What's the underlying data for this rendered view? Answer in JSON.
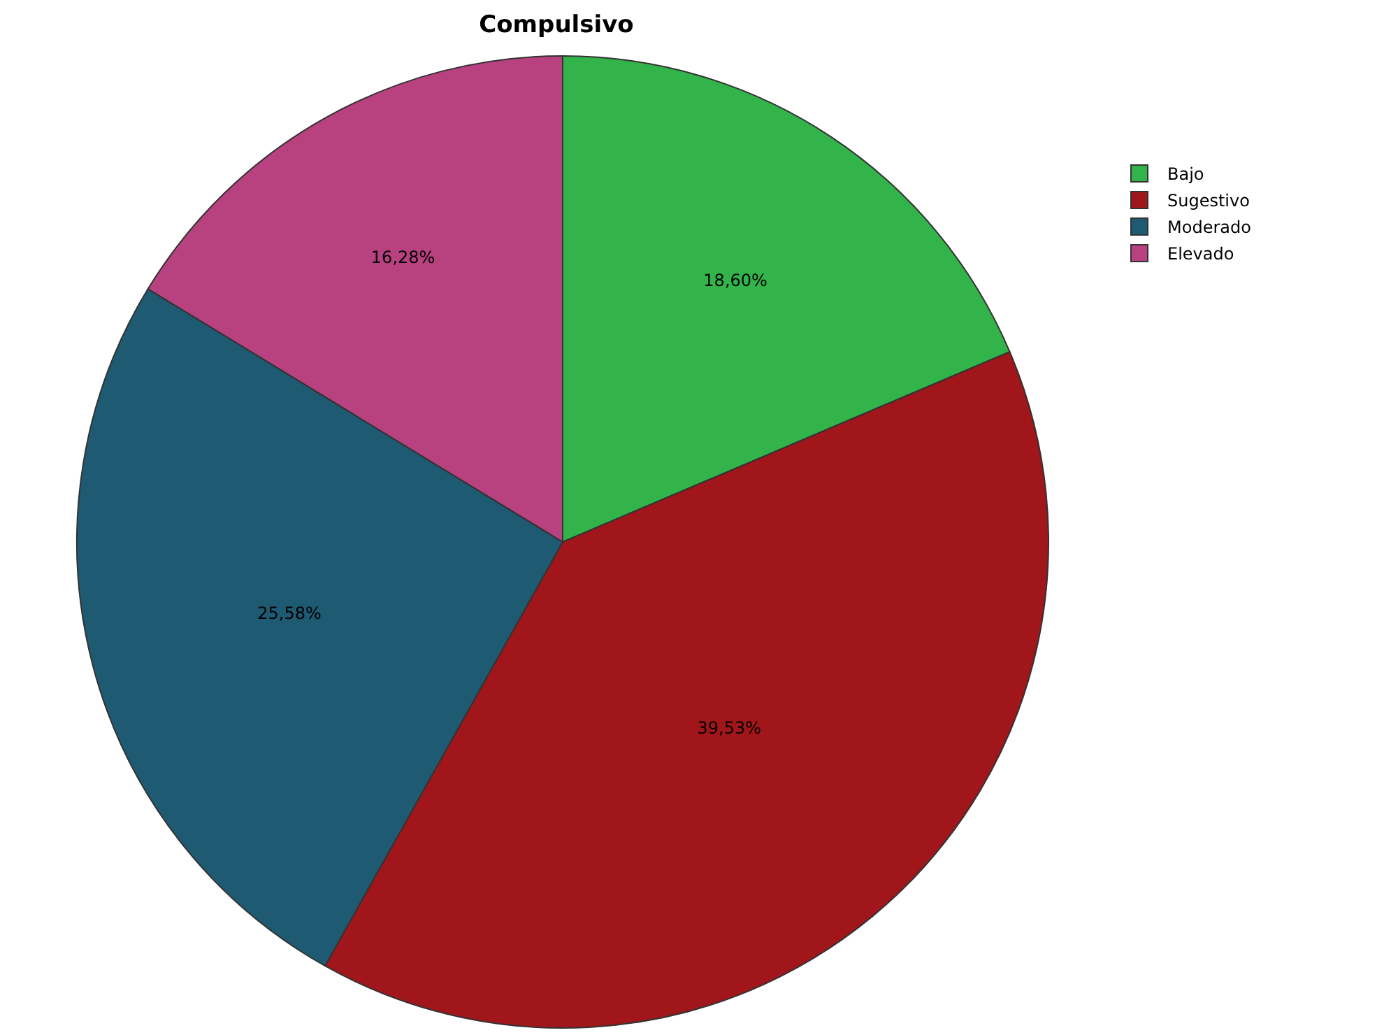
{
  "chart_data": {
    "type": "pie",
    "title": "Compulsivo",
    "categories": [
      "Bajo",
      "Sugestivo",
      "Moderado",
      "Elevado"
    ],
    "values": [
      18.6,
      39.53,
      25.58,
      16.28
    ],
    "colors": [
      "#33b44a",
      "#a0161a",
      "#1f5a73",
      "#b8417f"
    ],
    "value_labels": [
      "18,60%",
      "39,53%",
      "25,58%",
      "16,28%"
    ],
    "legend": "top right"
  }
}
